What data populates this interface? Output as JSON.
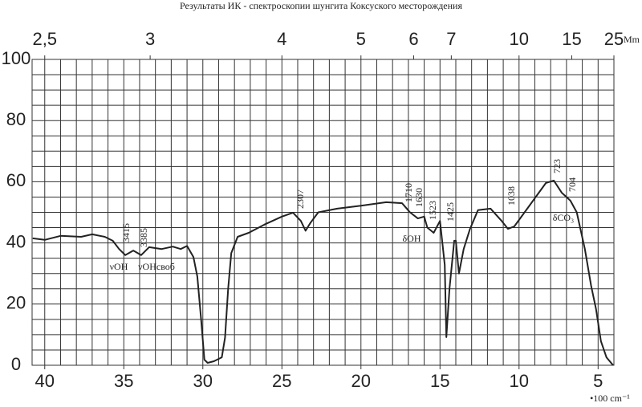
{
  "chart_data": {
    "type": "line",
    "title": "Результаты ИК - спектроскопии шунгита Коксуского месторождения",
    "xlabel": "•100 cm⁻¹",
    "x2label": "Mm",
    "xlim": [
      40.8,
      4.0
    ],
    "ylim": [
      0,
      100
    ],
    "xticks": [
      40,
      35,
      30,
      25,
      20,
      15,
      10,
      5
    ],
    "yticks": [
      0,
      20,
      40,
      60,
      80,
      100
    ],
    "x2ticks": [
      {
        "value": 2.5,
        "label": "2,5"
      },
      3,
      4,
      5,
      6,
      7,
      10,
      15,
      25
    ],
    "xgrid": [
      40,
      39,
      38,
      37,
      36,
      35,
      34,
      33,
      32,
      31,
      30,
      29,
      28,
      27,
      26,
      25,
      24,
      23,
      22,
      21,
      20,
      19,
      18,
      17,
      16,
      15,
      14,
      13,
      12,
      11,
      10,
      9,
      8,
      7,
      6,
      5
    ],
    "ygrid": [
      0,
      5,
      10,
      15,
      20,
      25,
      30,
      35,
      40,
      45,
      50,
      55,
      60,
      65,
      70,
      75,
      80,
      85,
      90,
      95,
      100
    ],
    "grid": true,
    "series": [
      {
        "color": "#222222",
        "x": [
          40.76,
          40,
          39,
          37.7,
          37,
          36.2,
          35.7,
          35.3,
          34.9,
          34.4,
          33.9,
          33.4,
          32.6,
          31.9,
          31.4,
          31.0,
          30.6,
          30.35,
          30.1,
          29.9,
          29.7,
          29.3,
          28.8,
          28.6,
          28.4,
          28.2,
          27.8,
          27.1,
          26.1,
          25.0,
          24.3,
          23.8,
          23.5,
          23.2,
          22.7,
          21.5,
          19.95,
          18.4,
          17.4,
          16.9,
          16.4,
          16.0,
          15.8,
          15.4,
          15.0,
          14.7,
          14.6,
          14.4,
          14.1,
          14.0,
          13.8,
          13.5,
          13.1,
          12.6,
          11.8,
          11.1,
          10.7,
          10.3,
          9.3,
          8.3,
          7.8,
          7.3,
          7.0,
          6.75,
          6.35,
          5.84,
          5.44,
          5.13,
          4.82,
          4.47,
          4.05
        ],
        "values": [
          41.5,
          41,
          42.3,
          42,
          42.8,
          42,
          40.7,
          38,
          36,
          37.5,
          36,
          38.6,
          38,
          38.8,
          38,
          39,
          35.4,
          29,
          14.4,
          1.8,
          0.8,
          1.3,
          2.6,
          9,
          25,
          36.7,
          42,
          43.3,
          46,
          48.6,
          49.9,
          47.2,
          44,
          46.5,
          50,
          51.2,
          52.2,
          53.3,
          53,
          50,
          48,
          48.6,
          45,
          43.3,
          47.2,
          32.8,
          9.2,
          25,
          40.7,
          40.7,
          30,
          38,
          44.6,
          50.7,
          51.2,
          47.2,
          44.6,
          45.4,
          52.5,
          59.6,
          60.4,
          56.4,
          55,
          53.8,
          50,
          38,
          26,
          18.4,
          7.9,
          2.6,
          0
        ]
      }
    ],
    "annotations": [
      "3415",
      "3385",
      "2307",
      "1710",
      "1630",
      "1523",
      "1425",
      "1038",
      "723",
      "704",
      "νOH",
      "νOHсвоб",
      "δOH",
      "δCO₃"
    ]
  }
}
